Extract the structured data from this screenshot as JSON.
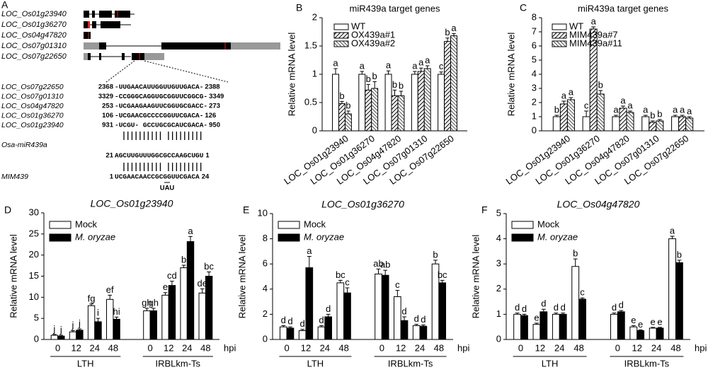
{
  "panel_a": {
    "label": "A",
    "genes": [
      "LOC_Os01g23940",
      "LOC_Os01g36270",
      "LOC_Os04g47820",
      "LOC_Os07g01310",
      "LOC_Os07g22650"
    ],
    "alignment": [
      {
        "name": "LOC_Os07g22650",
        "start": 2368,
        "seq": "-UUGAACAUUGGUUGUUGACA-",
        "end": 2388
      },
      {
        "name": "LOC_Os07g01310",
        "start": 3329,
        "seq": "-CCGGGCAGGUGCGGUUCGGCG-",
        "end": 3349
      },
      {
        "name": "LOC_Os04g47820",
        "start": 253,
        "seq": "-UCGAAGAAGUUCGGUGCGACC-",
        "end": 273
      },
      {
        "name": "LOC_Os01g36270",
        "start": 106,
        "seq": "-UCGAACGCCCCGGUUCGACA-",
        "end": 126
      },
      {
        "name": "LOC_Os01g23940",
        "start": 931,
        "seq": "-UCGU- GCCUGCGCAUCGACA-",
        "end": 950
      }
    ],
    "mirna": {
      "name": "Osa-miR439a",
      "start": 21,
      "seq": "AGCUUGUUUGGCGCCAAGCUGU",
      "end": 1
    },
    "mim": {
      "name": "MIM439",
      "start": 1,
      "seq": "UCGAACAACCGCGGUUCGACA",
      "end": 24,
      "bulge": "UAU"
    }
  },
  "chart_data": [
    {
      "type": "bar",
      "panel": "B",
      "title": "miR439a target genes",
      "ylabel": "Relative  mRNA level",
      "categories": [
        "LOC_Os01g23940",
        "LOC_Os01g36270",
        "LOC_Os04g47820",
        "LOC_Os07g01310",
        "LOC_Os07g22650"
      ],
      "ylim": [
        0,
        2
      ],
      "yticks": [
        0,
        0.5,
        1,
        1.5,
        2
      ],
      "legend": "upper left",
      "series": [
        {
          "name": "WT",
          "color": "#ffffff",
          "pattern": "solid",
          "values": [
            1.0,
            1.0,
            1.0,
            1.0,
            1.0
          ],
          "errors": [
            0.1,
            0.05,
            0.06,
            0.05,
            0.04
          ],
          "letters": [
            "a",
            "a",
            "a",
            "a",
            "c"
          ]
        },
        {
          "name": "OX439a#1",
          "color": "#000000",
          "pattern": "hatch-45",
          "values": [
            0.48,
            0.72,
            0.62,
            1.05,
            1.58
          ],
          "errors": [
            0.04,
            0.1,
            0.1,
            0.06,
            0.06
          ],
          "letters": [
            "b",
            "b",
            "b",
            "a",
            "b"
          ]
        },
        {
          "name": "OX439a#2",
          "color": "#000000",
          "pattern": "hatch-135",
          "values": [
            0.3,
            0.75,
            0.62,
            1.1,
            1.68
          ],
          "errors": [
            0.05,
            0.12,
            0.08,
            0.05,
            0.04
          ],
          "letters": [
            "b",
            "b",
            "b",
            "a",
            "a"
          ]
        }
      ]
    },
    {
      "type": "bar",
      "panel": "C",
      "title": "miR439a target genes",
      "ylabel": "Relative  mRNA level",
      "categories": [
        "LOC_Os01g23940",
        "LOC_Os01g36270",
        "LOC_Os04g47820",
        "LOC_Os07g01310",
        "LOC_Os07g22650"
      ],
      "ylim": [
        0,
        8
      ],
      "yticks": [
        0,
        1,
        2,
        3,
        4,
        5,
        6,
        7,
        8
      ],
      "legend": "upper left",
      "series": [
        {
          "name": "WT",
          "color": "#ffffff",
          "pattern": "solid",
          "values": [
            1.0,
            1.0,
            1.0,
            1.0,
            1.0
          ],
          "errors": [
            0.1,
            0.4,
            0.1,
            0.1,
            0.1
          ],
          "letters": [
            "b",
            "c",
            "a",
            "a",
            "a"
          ]
        },
        {
          "name": "MIM439a#7",
          "color": "#000000",
          "pattern": "hatch-45",
          "values": [
            1.9,
            7.2,
            1.6,
            0.6,
            1.0
          ],
          "errors": [
            0.2,
            0.15,
            0.15,
            0.1,
            0.1
          ],
          "letters": [
            "a",
            "a",
            "a",
            "b",
            "a"
          ]
        },
        {
          "name": "MIM439a#11",
          "color": "#000000",
          "pattern": "hatch-135",
          "values": [
            2.2,
            2.6,
            1.3,
            0.7,
            0.9
          ],
          "errors": [
            0.15,
            0.25,
            0.1,
            0.1,
            0.1
          ],
          "letters": [
            "a",
            "b",
            "a",
            "b",
            "a"
          ]
        }
      ]
    },
    {
      "type": "bar",
      "panel": "D",
      "title": "LOC_Os01g23940",
      "ylabel": "Relative mRNA level",
      "categories": [
        "0",
        "12",
        "24",
        "48",
        "0",
        "12",
        "24",
        "48"
      ],
      "groups": [
        "LTH",
        "IRBLkm-Ts"
      ],
      "xlabel": "hpi",
      "ylim": [
        0,
        30
      ],
      "yticks": [
        0,
        5,
        10,
        15,
        20,
        25,
        30
      ],
      "legend": "upper left",
      "series": [
        {
          "name": "Mock",
          "color": "#ffffff",
          "pattern": "solid",
          "values": [
            1.0,
            1.8,
            8.0,
            9.5,
            6.8,
            10.5,
            17.0,
            11.0
          ],
          "errors": [
            0.2,
            0.3,
            0.4,
            1.0,
            0.6,
            0.6,
            0.6,
            1.0
          ],
          "letters": [
            "j",
            "j",
            "fg",
            "ef",
            "gh",
            "e",
            "b",
            "de"
          ]
        },
        {
          "name": "M. oryzae",
          "color": "#000000",
          "pattern": "solid",
          "values": [
            0.8,
            2.2,
            4.2,
            4.8,
            6.8,
            12.8,
            23.2,
            15.0
          ],
          "errors": [
            0.2,
            0.3,
            0.8,
            0.5,
            0.6,
            1.0,
            1.2,
            1.0
          ],
          "letters": [
            "j",
            "j",
            "i",
            "hi",
            "gh",
            "cd",
            "a",
            "bc"
          ]
        }
      ]
    },
    {
      "type": "bar",
      "panel": "E",
      "title": "LOC_Os01g36270",
      "ylabel": "Relative mRNA level",
      "categories": [
        "0",
        "12",
        "24",
        "48",
        "0",
        "12",
        "24",
        "48"
      ],
      "groups": [
        "LTH",
        "IRBLkm-Ts"
      ],
      "xlabel": "hpi",
      "ylim": [
        0,
        10
      ],
      "yticks": [
        0,
        2,
        4,
        6,
        8,
        10
      ],
      "legend": "upper left",
      "series": [
        {
          "name": "Mock",
          "color": "#ffffff",
          "pattern": "solid",
          "values": [
            1.0,
            0.7,
            1.0,
            4.5,
            5.2,
            3.4,
            1.1,
            6.0
          ],
          "errors": [
            0.1,
            0.1,
            0.1,
            0.2,
            0.4,
            0.5,
            0.1,
            0.3
          ],
          "letters": [
            "d",
            "d",
            "d",
            "bc",
            "ab",
            "c",
            "d",
            "b"
          ]
        },
        {
          "name": "M. oryzae",
          "color": "#000000",
          "pattern": "solid",
          "values": [
            0.9,
            5.7,
            1.8,
            3.7,
            5.1,
            1.5,
            1.05,
            4.5
          ],
          "errors": [
            0.1,
            0.9,
            0.2,
            0.4,
            0.4,
            0.3,
            0.1,
            0.2
          ],
          "letters": [
            "d",
            "a",
            "d",
            "c",
            "ab",
            "d",
            "d",
            "bc"
          ]
        }
      ]
    },
    {
      "type": "bar",
      "panel": "F",
      "title": "LOC_Os04g47820",
      "ylabel": "Relative mRNA level",
      "categories": [
        "0",
        "12",
        "24",
        "48",
        "0",
        "12",
        "24",
        "48"
      ],
      "groups": [
        "LTH",
        "IRBLkm-Ts"
      ],
      "xlabel": "hpi",
      "ylim": [
        0,
        5
      ],
      "yticks": [
        0,
        1,
        2,
        3,
        4,
        5
      ],
      "legend": "upper left",
      "series": [
        {
          "name": "Mock",
          "color": "#ffffff",
          "pattern": "solid",
          "values": [
            1.0,
            0.6,
            1.0,
            2.9,
            1.0,
            0.5,
            0.45,
            4.0
          ],
          "errors": [
            0.05,
            0.05,
            0.05,
            0.3,
            0.05,
            0.05,
            0.03,
            0.1
          ],
          "letters": [
            "d",
            "e",
            "d",
            "b",
            "d",
            "e",
            "e",
            "a"
          ]
        },
        {
          "name": "M. oryzae",
          "color": "#000000",
          "pattern": "solid",
          "values": [
            0.95,
            1.1,
            1.0,
            1.6,
            1.1,
            0.35,
            0.45,
            3.05
          ],
          "errors": [
            0.05,
            0.1,
            0.05,
            0.05,
            0.05,
            0.03,
            0.03,
            0.1
          ],
          "letters": [
            "d",
            "d",
            "d",
            "c",
            "d",
            "e",
            "e",
            "b"
          ]
        }
      ]
    }
  ]
}
